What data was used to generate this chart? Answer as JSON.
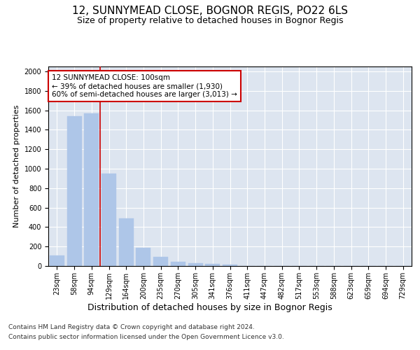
{
  "title": "12, SUNNYMEAD CLOSE, BOGNOR REGIS, PO22 6LS",
  "subtitle": "Size of property relative to detached houses in Bognor Regis",
  "xlabel": "Distribution of detached houses by size in Bognor Regis",
  "ylabel": "Number of detached properties",
  "categories": [
    "23sqm",
    "58sqm",
    "94sqm",
    "129sqm",
    "164sqm",
    "200sqm",
    "235sqm",
    "270sqm",
    "305sqm",
    "341sqm",
    "376sqm",
    "411sqm",
    "447sqm",
    "482sqm",
    "517sqm",
    "553sqm",
    "588sqm",
    "623sqm",
    "659sqm",
    "694sqm",
    "729sqm"
  ],
  "values": [
    110,
    1540,
    1570,
    950,
    490,
    190,
    95,
    45,
    30,
    20,
    15,
    0,
    0,
    0,
    0,
    0,
    0,
    0,
    0,
    0,
    0
  ],
  "bar_color": "#aec6e8",
  "bar_edge_color": "#aec6e8",
  "red_line_index": 2,
  "annotation_line1": "12 SUNNYMEAD CLOSE: 100sqm",
  "annotation_line2": "← 39% of detached houses are smaller (1,930)",
  "annotation_line3": "60% of semi-detached houses are larger (3,013) →",
  "annotation_box_color": "#ffffff",
  "annotation_box_edge": "#cc0000",
  "ylim": [
    0,
    2050
  ],
  "yticks": [
    0,
    200,
    400,
    600,
    800,
    1000,
    1200,
    1400,
    1600,
    1800,
    2000
  ],
  "background_color": "#dde5f0",
  "footer1": "Contains HM Land Registry data © Crown copyright and database right 2024.",
  "footer2": "Contains public sector information licensed under the Open Government Licence v3.0.",
  "title_fontsize": 11,
  "subtitle_fontsize": 9,
  "xlabel_fontsize": 9,
  "ylabel_fontsize": 8,
  "tick_fontsize": 7,
  "annotation_fontsize": 7.5,
  "footer_fontsize": 6.5
}
